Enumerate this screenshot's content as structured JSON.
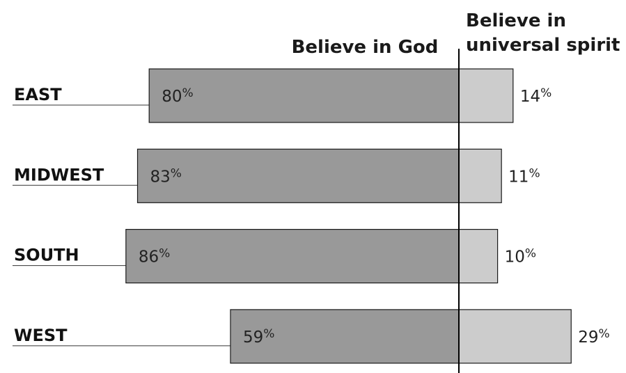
{
  "chart_data": {
    "type": "bar",
    "orientation": "horizontal",
    "stacked": "diverging",
    "categories": [
      "EAST",
      "MIDWEST",
      "SOUTH",
      "WEST"
    ],
    "series": [
      {
        "name": "Believe in God",
        "values": [
          80,
          83,
          86,
          59
        ],
        "labels": [
          "80",
          "83",
          "86",
          "59"
        ],
        "color": "#999999"
      },
      {
        "name": "Believe in universal spirit",
        "name_lines": [
          "Believe in",
          "universal spirit"
        ],
        "values": [
          14,
          11,
          10,
          29
        ],
        "labels": [
          "14",
          "11",
          "10",
          "29"
        ],
        "color": "#cccccc"
      }
    ],
    "unit": "%",
    "title": "",
    "xlabel": "",
    "ylabel": "",
    "grid": false,
    "legend": "none"
  }
}
